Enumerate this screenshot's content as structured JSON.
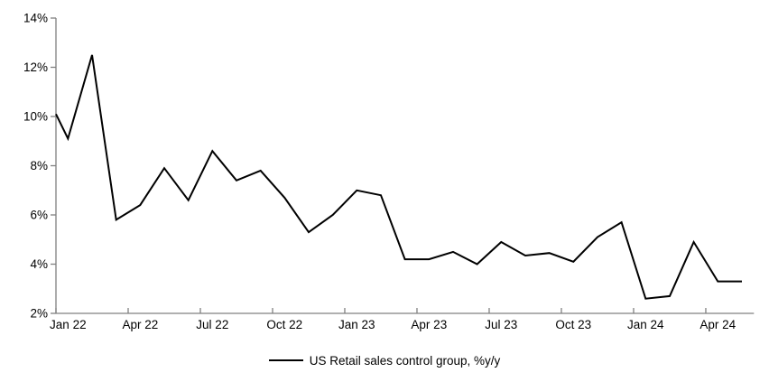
{
  "chart_data": {
    "type": "line",
    "title": "",
    "legend_label": "US Retail sales control group, %y/y",
    "categories": [
      "Jan 22",
      "Feb 22",
      "Mar 22",
      "Apr 22",
      "May 22",
      "Jun 22",
      "Jul 22",
      "Aug 22",
      "Sep 22",
      "Oct 22",
      "Nov 22",
      "Dec 22",
      "Jan 23",
      "Feb 23",
      "Mar 23",
      "Apr 23",
      "May 23",
      "Jun 23",
      "Jul 23",
      "Aug 23",
      "Sep 23",
      "Oct 23",
      "Nov 23",
      "Dec 23",
      "Jan 24",
      "Feb 24",
      "Mar 24",
      "Apr 24",
      "May 24"
    ],
    "values": [
      9.1,
      12.5,
      5.8,
      6.4,
      7.9,
      6.6,
      8.6,
      7.4,
      7.8,
      6.7,
      5.3,
      6.0,
      7.0,
      6.8,
      4.2,
      4.2,
      4.5,
      4.0,
      4.9,
      4.35,
      4.45,
      4.1,
      5.1,
      5.7,
      2.6,
      2.7,
      4.9,
      3.3,
      3.3
    ],
    "clipped_entry_value": 10.1,
    "ylim": [
      2,
      14
    ],
    "y_tick_values": [
      2,
      4,
      6,
      8,
      10,
      12,
      14
    ],
    "y_tick_labels": [
      "2%",
      "4%",
      "6%",
      "8%",
      "10%",
      "12%",
      "14%"
    ],
    "x_tick_labels": [
      "Jan 22",
      "Apr 22",
      "Jul 22",
      "Oct 22",
      "Jan 23",
      "Apr 23",
      "Jul 23",
      "Oct 23",
      "Jan 24",
      "Apr 24"
    ],
    "x_tick_label_every": 3,
    "grid": false,
    "legend_position": "bottom-center",
    "line_color": "#000000",
    "axis_color": "#808080",
    "background": "#ffffff"
  }
}
